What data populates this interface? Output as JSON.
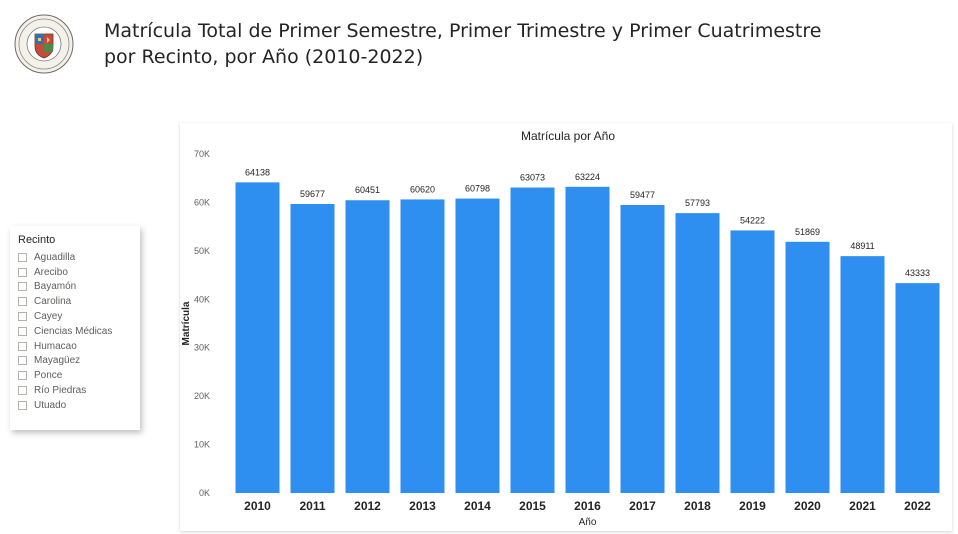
{
  "header": {
    "title_line1": "Matrícula Total de Primer Semestre, Primer Trimestre y Primer Cuatrimestre",
    "title_line2": "por Recinto, por Año (2010-2022)",
    "logo_icon": "university-seal-icon"
  },
  "slicer": {
    "title": "Recinto",
    "items": [
      {
        "label": "Aguadilla",
        "checked": false
      },
      {
        "label": "Arecibo",
        "checked": false
      },
      {
        "label": "Bayamón",
        "checked": false
      },
      {
        "label": "Carolina",
        "checked": false
      },
      {
        "label": "Cayey",
        "checked": false
      },
      {
        "label": "Ciencias Médicas",
        "checked": false
      },
      {
        "label": "Humacao",
        "checked": false
      },
      {
        "label": "Mayagüez",
        "checked": false
      },
      {
        "label": "Ponce",
        "checked": false
      },
      {
        "label": "Río Piedras",
        "checked": false
      },
      {
        "label": "Utuado",
        "checked": false
      }
    ]
  },
  "chart_data": {
    "type": "bar",
    "title": "Matrícula por Año",
    "xlabel": "Año",
    "ylabel": "Matrícula",
    "categories": [
      "2010",
      "2011",
      "2012",
      "2013",
      "2014",
      "2015",
      "2016",
      "2017",
      "2018",
      "2019",
      "2020",
      "2021",
      "2022"
    ],
    "values": [
      64138,
      59677,
      60451,
      60620,
      60798,
      63073,
      63224,
      59477,
      57793,
      54222,
      51869,
      48911,
      43333
    ],
    "ylim": [
      0,
      70000
    ],
    "yticks": [
      0,
      10000,
      20000,
      30000,
      40000,
      50000,
      60000,
      70000
    ],
    "ytick_labels": [
      "0K",
      "10K",
      "20K",
      "30K",
      "40K",
      "50K",
      "60K",
      "70K"
    ],
    "data_labels": true,
    "grid": false,
    "bar_color": "#2f8ff0"
  }
}
